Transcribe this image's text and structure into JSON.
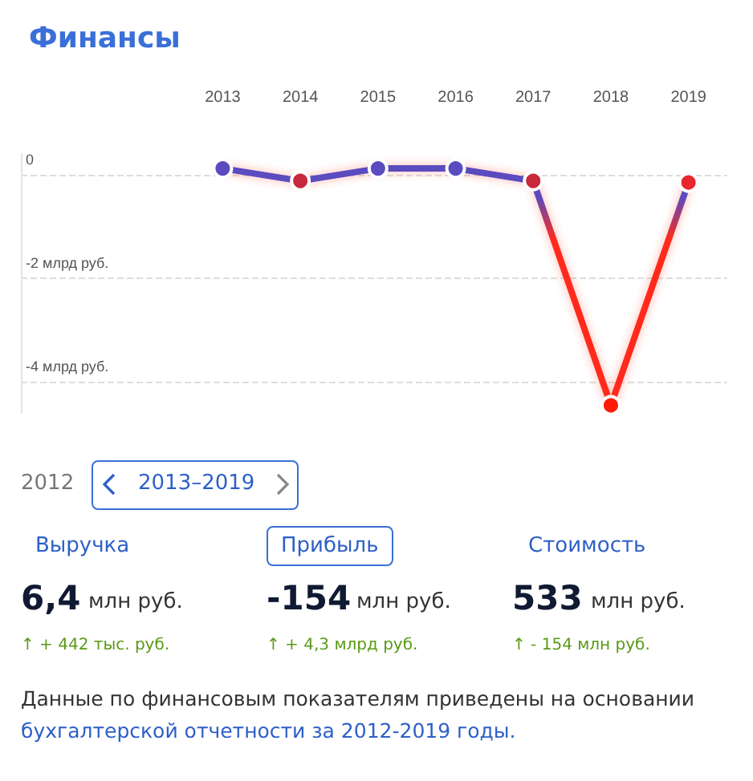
{
  "chart_data": {
    "type": "line",
    "title": "Финансы",
    "x": [
      2013,
      2014,
      2015,
      2016,
      2017,
      2018,
      2019
    ],
    "series": [
      {
        "color": "#ff2a1a",
        "colors": [
          "#5a4bbf",
          "#c8283c",
          "#5a4bbf",
          "#5a4bbf",
          "#c8283c",
          "#ff1a0a",
          "#e8262e"
        ],
        "values": [
          0.12,
          -0.12,
          0.12,
          0.12,
          -0.12,
          -4.45,
          -0.15
        ]
      }
    ],
    "xlim": [
      2010.4,
      2019.5
    ],
    "xticks": [
      2013,
      2014,
      2015,
      2016,
      2017,
      2018,
      2019
    ],
    "ylim": [
      -4.6,
      0.4
    ],
    "yticks": [
      {
        "value": -4,
        "label": "-4 млрд руб."
      },
      {
        "value": -2,
        "label": "-2 млрд руб."
      },
      0
    ],
    "grid": "y",
    "marker": "circle",
    "line_style": "solid",
    "annotations": [
      "2012",
      "2013–2019",
      "Выручка",
      "Прибыль",
      "Стоимость",
      "6,4",
      "млн руб.",
      "-154",
      "млн руб.",
      "533",
      "млн руб.",
      "↑ + 442 тыс. руб.",
      "↑ + 4,3 млрд руб.",
      "↑ - 154 млн руб.",
      "Данные по финансовым показателям приведены на основании",
      "бухгалтерской отчетности за 2012-2019 годы."
    ]
  }
}
